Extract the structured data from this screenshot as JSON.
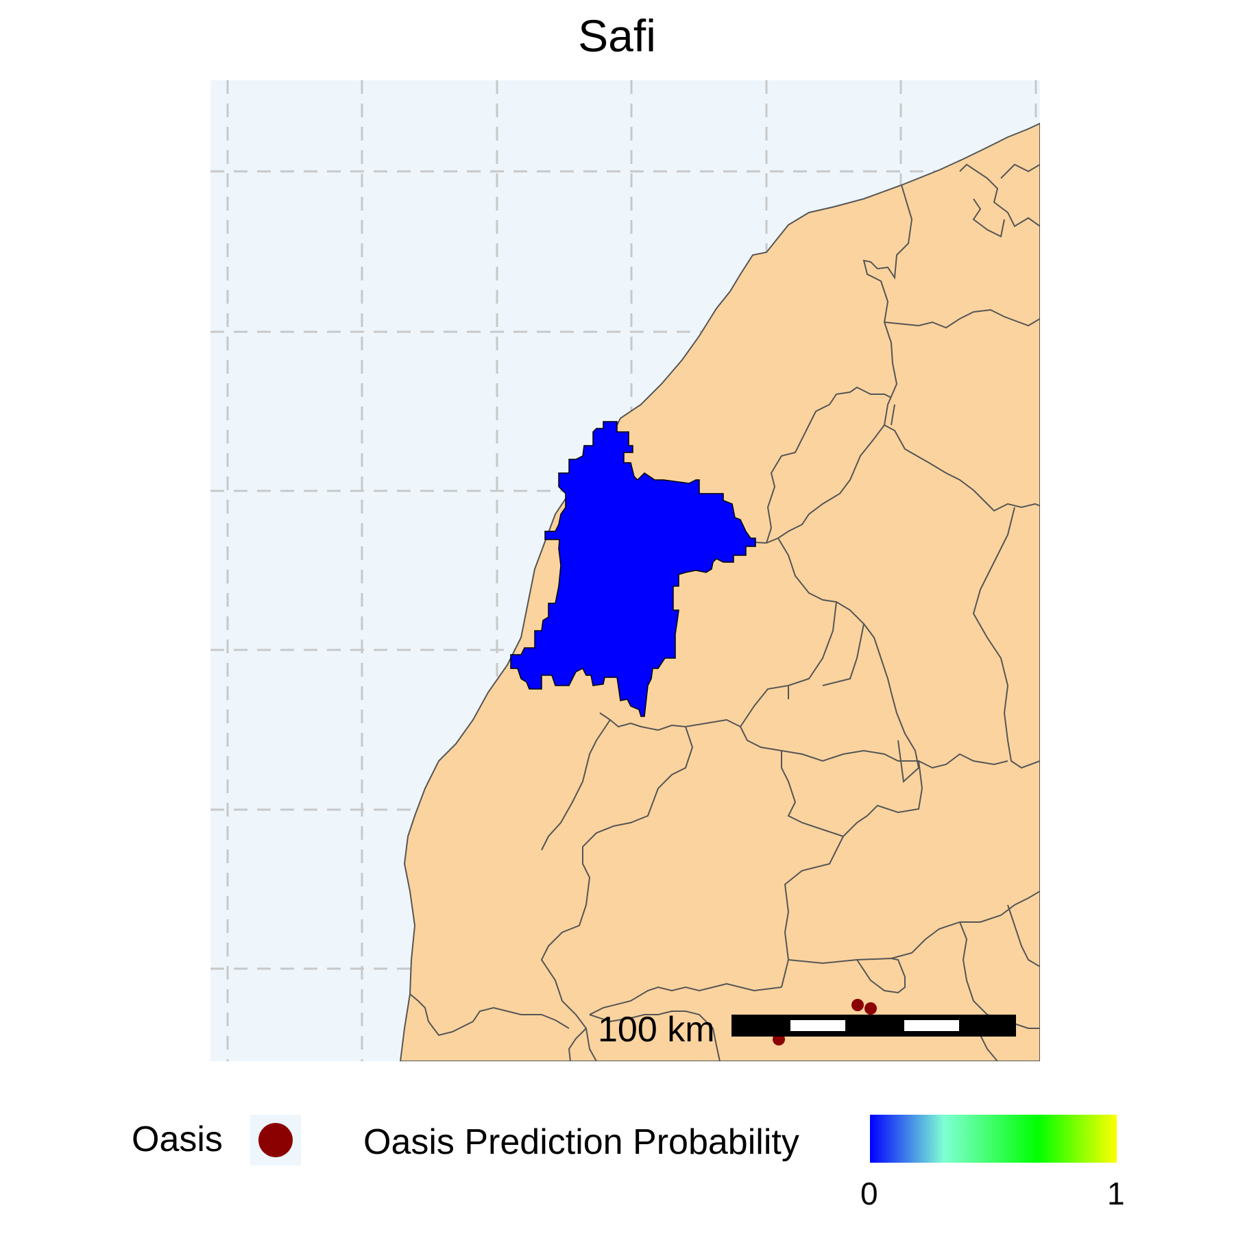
{
  "title": "Safi",
  "colors": {
    "ocean": "#eef6fc",
    "land": "#fad39f",
    "border": "#555555",
    "grid": "#c8c8c8",
    "prediction_zero": "#0000ff",
    "oasis_point": "#8b0000"
  },
  "scale_bar": {
    "label": "100 km",
    "segments": 5
  },
  "legend": {
    "oasis_label": "Oasis",
    "oasis_icon": "filled-circle",
    "probability_label": "Oasis Prediction Probability",
    "colorbar_min": "0",
    "colorbar_max": "1",
    "colorbar_colors": [
      "#0000ff",
      "#7fffd4",
      "#00ff00",
      "#ffff00"
    ]
  },
  "prediction_region": {
    "province": "Safi",
    "probability": 0
  },
  "oasis_points_count": 3
}
